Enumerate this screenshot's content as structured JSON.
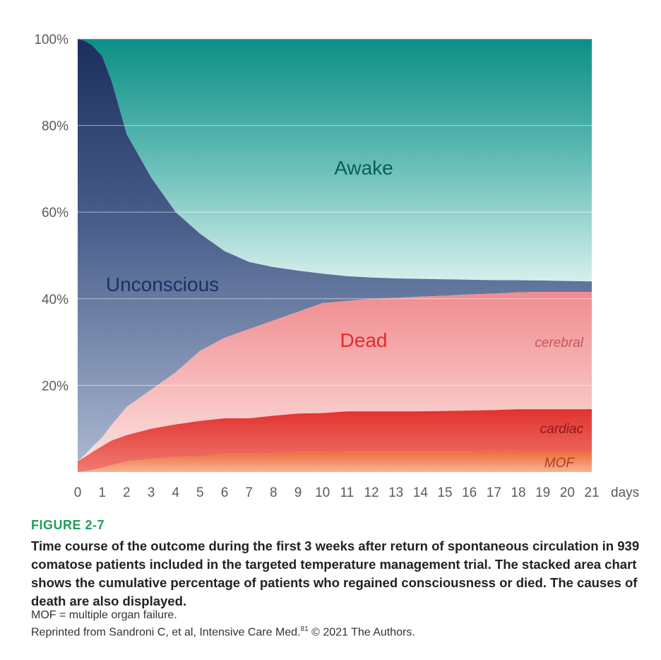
{
  "chart_data": {
    "type": "area",
    "stacked": true,
    "x": [
      0,
      0.3,
      0.6,
      1,
      1.4,
      2,
      3,
      4,
      5,
      6,
      7,
      8,
      9,
      10,
      11,
      12,
      13,
      14,
      15,
      16,
      17,
      18,
      19,
      20,
      21
    ],
    "xlabel": "days",
    "x_ticks": [
      "0",
      "1",
      "2",
      "3",
      "4",
      "5",
      "6",
      "7",
      "8",
      "9",
      "10",
      "11",
      "12",
      "13",
      "14",
      "15",
      "16",
      "17",
      "18",
      "19",
      "20",
      "21"
    ],
    "y_ticks": [
      "20%",
      "40%",
      "60%",
      "80%",
      "100%"
    ],
    "ylim": [
      0,
      100
    ],
    "grid": true,
    "series_lines": {
      "mof": [
        0,
        0.2,
        0.5,
        1,
        1.6,
        2.5,
        3,
        3.5,
        3.6,
        4.2,
        4.2,
        4.4,
        4.6,
        4.6,
        4.7,
        4.7,
        4.7,
        4.7,
        4.7,
        4.7,
        4.8,
        4.9,
        4.9,
        4.9,
        4.9
      ],
      "cardiac": [
        2.5,
        3.5,
        4.6,
        6,
        7.3,
        8.5,
        10,
        11,
        11.8,
        12.4,
        12.4,
        13,
        13.5,
        13.6,
        14,
        14,
        14,
        14,
        14.1,
        14.2,
        14.3,
        14.5,
        14.5,
        14.5,
        14.5
      ],
      "dead": [
        2.5,
        4,
        5.8,
        8,
        11,
        15,
        19,
        23,
        28,
        31,
        33,
        35,
        37,
        39,
        39.5,
        40,
        40.2,
        40.5,
        40.7,
        41,
        41.2,
        41.5,
        41.6,
        41.6,
        41.6
      ],
      "unconscious": [
        100,
        99.5,
        98.5,
        96,
        90,
        78,
        68,
        60,
        55,
        51,
        48.5,
        47.3,
        46.5,
        45.8,
        45.2,
        44.9,
        44.7,
        44.6,
        44.5,
        44.4,
        44.3,
        44.3,
        44.2,
        44.1,
        44
      ]
    },
    "regions": [
      {
        "name": "Awake",
        "color": "#0c8f86"
      },
      {
        "name": "Unconscious",
        "color": "#223d6b"
      },
      {
        "name": "Dead",
        "color": "#e8393a"
      },
      {
        "name": "cerebral",
        "color": "#f6b5b8"
      },
      {
        "name": "cardiac",
        "color": "#e23a33"
      },
      {
        "name": "MOF",
        "color": "#ee7a3e"
      }
    ]
  },
  "caption": {
    "figure_label": "FIGURE 2-7",
    "text": "Time course of the outcome during the first 3 weeks after return of spontaneous circulation in 939 comatose patients included in the targeted temperature management trial. The stacked area chart shows the cumulative percentage of patients who regained consciousness or died. The causes of death are also displayed.",
    "note": "MOF = multiple organ failure.",
    "reprint_before": "Reprinted from Sandroni C, et al, Intensive Care Med.",
    "reprint_ref": "81",
    "reprint_after": " © 2021 The Authors."
  }
}
